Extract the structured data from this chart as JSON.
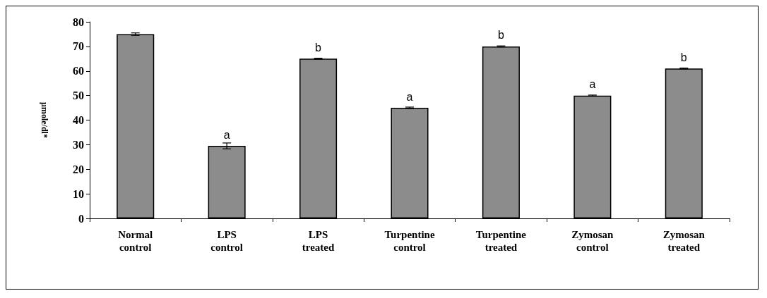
{
  "chart_data": {
    "type": "bar",
    "ylabel": "μmole/dl*",
    "categories": [
      "Normal\ncontrol",
      "LPS\ncontrol",
      "LPS\ntreated",
      "Turpentine\ncontrol",
      "Turpentine\ntreated",
      "Zymosan\ncontrol",
      "Zymosan\ntreated"
    ],
    "values": [
      75,
      29.5,
      65,
      45,
      70,
      50,
      61
    ],
    "errors": [
      0.5,
      1.2,
      0.2,
      0.3,
      0.2,
      0.2,
      0.2
    ],
    "value_labels": [
      null,
      "a",
      "b",
      "a",
      "b",
      "a",
      "b"
    ],
    "color": "#8c8c8c",
    "ylim": [
      0,
      80
    ],
    "yticks": [
      0,
      10,
      20,
      30,
      40,
      50,
      60,
      70,
      80
    ],
    "grid": false
  }
}
